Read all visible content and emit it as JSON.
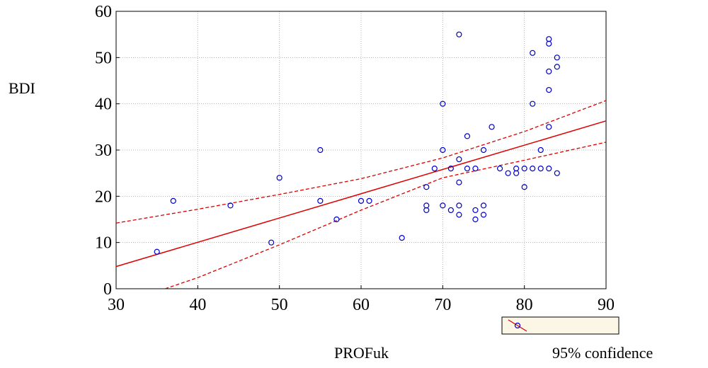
{
  "chart_data": {
    "type": "scatter",
    "xlabel": "PROFuk",
    "ylabel": "BDI",
    "xlim": [
      30,
      90
    ],
    "ylim": [
      0,
      60
    ],
    "xticks": [
      30,
      40,
      50,
      60,
      70,
      80,
      90
    ],
    "yticks": [
      0,
      10,
      20,
      30,
      40,
      50,
      60
    ],
    "grid": true,
    "legend_label": "95% confidence",
    "legend_position": "bottom-right",
    "colors": {
      "points": "#0000cc",
      "fit": "#dd0000"
    },
    "points": [
      [
        35,
        8
      ],
      [
        37,
        19
      ],
      [
        44,
        18
      ],
      [
        49,
        10
      ],
      [
        50,
        24
      ],
      [
        55,
        30
      ],
      [
        55,
        19
      ],
      [
        57,
        15
      ],
      [
        60,
        19
      ],
      [
        61,
        19
      ],
      [
        65,
        11
      ],
      [
        68,
        22
      ],
      [
        68,
        18
      ],
      [
        68,
        17
      ],
      [
        69,
        26
      ],
      [
        70,
        40
      ],
      [
        70,
        30
      ],
      [
        70,
        18
      ],
      [
        71,
        26
      ],
      [
        71,
        17
      ],
      [
        72,
        55
      ],
      [
        72,
        28
      ],
      [
        72,
        23
      ],
      [
        72,
        18
      ],
      [
        72,
        16
      ],
      [
        73,
        33
      ],
      [
        73,
        26
      ],
      [
        74,
        26
      ],
      [
        74,
        17
      ],
      [
        74,
        15
      ],
      [
        75,
        30
      ],
      [
        75,
        18
      ],
      [
        75,
        16
      ],
      [
        76,
        35
      ],
      [
        77,
        26
      ],
      [
        78,
        25
      ],
      [
        79,
        26
      ],
      [
        79,
        25
      ],
      [
        80,
        26
      ],
      [
        80,
        22
      ],
      [
        81,
        51
      ],
      [
        81,
        40
      ],
      [
        81,
        26
      ],
      [
        82,
        30
      ],
      [
        82,
        26
      ],
      [
        83,
        54
      ],
      [
        83,
        53
      ],
      [
        83,
        47
      ],
      [
        83,
        43
      ],
      [
        83,
        35
      ],
      [
        83,
        26
      ],
      [
        84,
        50
      ],
      [
        84,
        48
      ],
      [
        84,
        25
      ]
    ],
    "fit_line": [
      [
        30,
        4.8
      ],
      [
        90,
        36.3
      ]
    ],
    "ci_upper": [
      [
        30,
        14.2
      ],
      [
        40,
        17.2
      ],
      [
        50,
        20.4
      ],
      [
        60,
        23.8
      ],
      [
        70,
        28.3
      ],
      [
        80,
        34.0
      ],
      [
        90,
        40.7
      ]
    ],
    "ci_lower": [
      [
        36,
        0
      ],
      [
        40,
        2.4
      ],
      [
        50,
        9.5
      ],
      [
        60,
        17.0
      ],
      [
        70,
        24.0
      ],
      [
        80,
        27.8
      ],
      [
        90,
        31.7
      ]
    ]
  }
}
